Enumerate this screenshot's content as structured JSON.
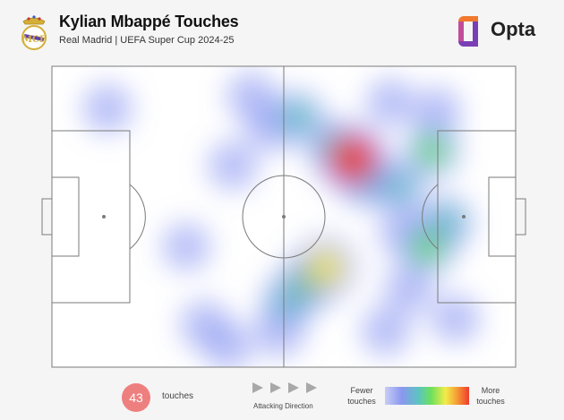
{
  "header": {
    "title": "Kylian Mbappé Touches",
    "subtitle": "Real Madrid | UEFA Super Cup 2024-25",
    "brand": "Opta"
  },
  "legend": {
    "count_value": "43",
    "count_label": "touches",
    "direction_label": "Attacking Direction",
    "scale_low_line1": "Fewer",
    "scale_low_line2": "touches",
    "scale_high_line1": "More",
    "scale_high_line2": "touches"
  },
  "colors": {
    "pitch_bg": "#ffffff",
    "lines": "#7a7a7a",
    "badge": "#ee7f7f",
    "opta_orange": "#f0792e",
    "opta_purple": "#7b3fb5"
  },
  "chart_data": {
    "type": "heatmap",
    "title": "Kylian Mbappé Touches",
    "subtitle": "Real Madrid | UEFA Super Cup 2024-25",
    "total_touches": 43,
    "attacking_direction": "left-to-right",
    "xlim": [
      0,
      100
    ],
    "ylim": [
      0,
      100
    ],
    "hotspots": [
      {
        "x": 65,
        "y": 31,
        "intensity": 1.0
      },
      {
        "x": 61,
        "y": 27,
        "intensity": 0.45
      },
      {
        "x": 68,
        "y": 38,
        "intensity": 0.4
      },
      {
        "x": 59,
        "y": 67,
        "intensity": 0.72
      },
      {
        "x": 55,
        "y": 72,
        "intensity": 0.5
      },
      {
        "x": 51,
        "y": 78,
        "intensity": 0.38
      },
      {
        "x": 49,
        "y": 88,
        "intensity": 0.3
      },
      {
        "x": 82,
        "y": 28,
        "intensity": 0.48
      },
      {
        "x": 81,
        "y": 60,
        "intensity": 0.52
      },
      {
        "x": 85,
        "y": 52,
        "intensity": 0.4
      },
      {
        "x": 75,
        "y": 40,
        "intensity": 0.32
      },
      {
        "x": 76,
        "y": 55,
        "intensity": 0.28
      },
      {
        "x": 53,
        "y": 17,
        "intensity": 0.38
      },
      {
        "x": 47,
        "y": 20,
        "intensity": 0.24
      },
      {
        "x": 43,
        "y": 10,
        "intensity": 0.22
      },
      {
        "x": 39,
        "y": 33,
        "intensity": 0.22
      },
      {
        "x": 72,
        "y": 88,
        "intensity": 0.22
      },
      {
        "x": 77,
        "y": 74,
        "intensity": 0.24
      },
      {
        "x": 87,
        "y": 84,
        "intensity": 0.2
      },
      {
        "x": 83,
        "y": 15,
        "intensity": 0.18
      },
      {
        "x": 73,
        "y": 12,
        "intensity": 0.16
      },
      {
        "x": 12,
        "y": 14,
        "intensity": 0.22
      },
      {
        "x": 29,
        "y": 60,
        "intensity": 0.18
      },
      {
        "x": 33,
        "y": 86,
        "intensity": 0.24
      },
      {
        "x": 38,
        "y": 93,
        "intensity": 0.2
      }
    ]
  }
}
